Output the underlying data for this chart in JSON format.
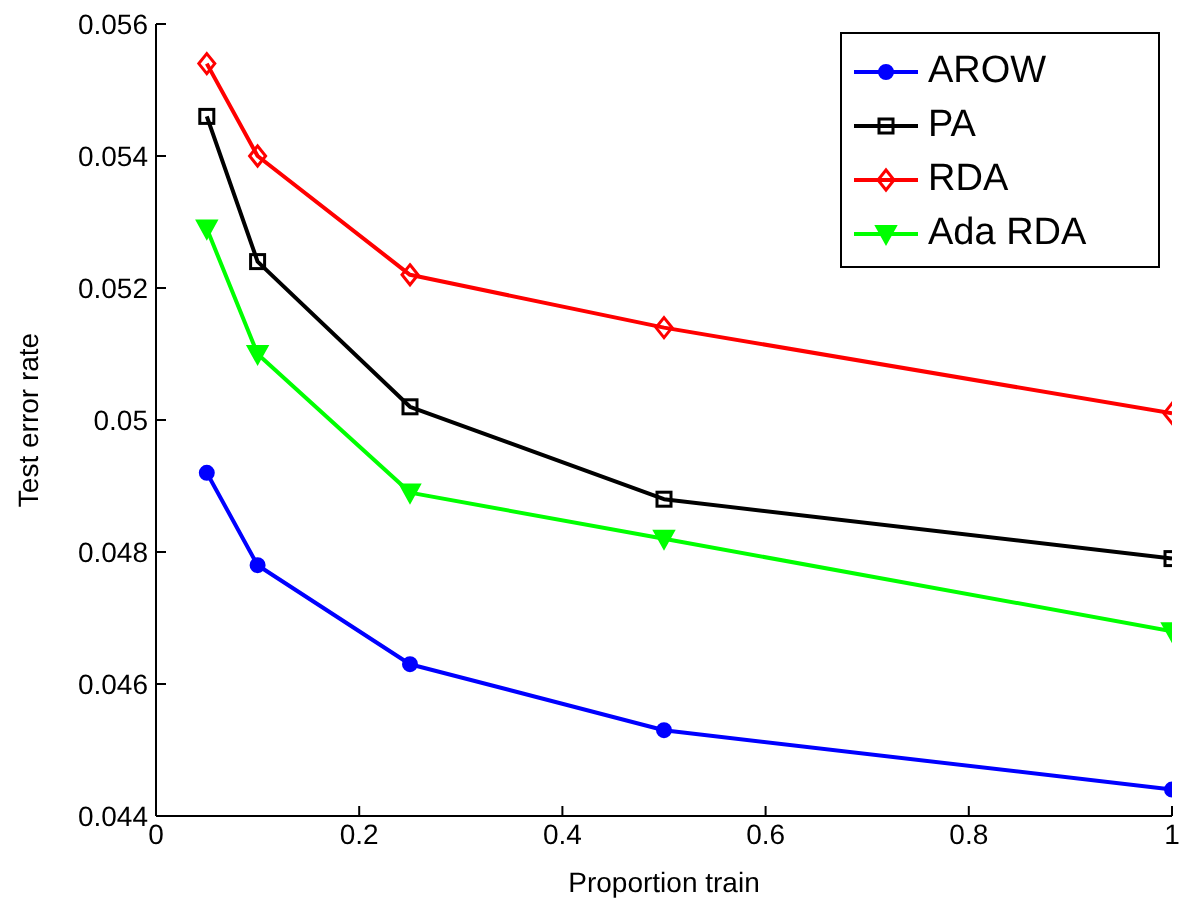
{
  "chart_data": {
    "type": "line",
    "xlabel": "Proportion train",
    "ylabel": "Test error rate",
    "xlim": [
      0,
      1
    ],
    "xticks": [
      0,
      0.2,
      0.4,
      0.6,
      0.8,
      1
    ],
    "ylim": [
      0.044,
      0.056
    ],
    "yticks": [
      0.044,
      0.046,
      0.048,
      0.05,
      0.052,
      0.054,
      0.056
    ],
    "x": [
      0.05,
      0.1,
      0.25,
      0.5,
      1
    ],
    "legend": "top right",
    "grid": false,
    "line_style": "solid",
    "series": [
      {
        "name": "AROW",
        "color": "#0000ff",
        "marker": "circle",
        "values": [
          0.0492,
          0.0478,
          0.0463,
          0.0453,
          0.0444
        ]
      },
      {
        "name": "PA",
        "color": "#000000",
        "marker": "square",
        "values": [
          0.0546,
          0.0524,
          0.0502,
          0.0488,
          0.0479
        ]
      },
      {
        "name": "RDA",
        "color": "#ff0000",
        "marker": "diamond",
        "values": [
          0.0554,
          0.054,
          0.0522,
          0.0514,
          0.0501
        ]
      },
      {
        "name": "Ada RDA",
        "color": "#00ff00",
        "marker": "triangle",
        "values": [
          0.0529,
          0.051,
          0.0489,
          0.0482,
          0.0468
        ]
      }
    ]
  }
}
